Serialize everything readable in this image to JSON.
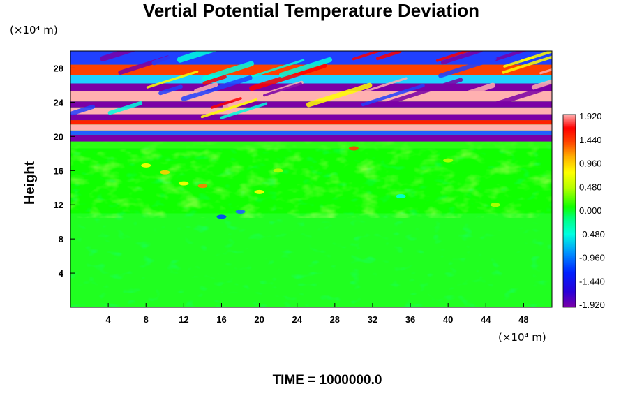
{
  "chart_data": {
    "type": "heatmap",
    "title": "Vertial Potential Temperature Deviation",
    "xlabel": "",
    "ylabel": "Height",
    "x_unit_label": "(×10⁴ m)",
    "y_unit_label": "(×10⁴ m)",
    "xlim": [
      0,
      51
    ],
    "ylim": [
      0,
      30
    ],
    "x_ticks": [
      "4",
      "8",
      "12",
      "16",
      "20",
      "24",
      "28",
      "32",
      "36",
      "40",
      "44",
      "48"
    ],
    "x_tick_values": [
      4,
      8,
      12,
      16,
      20,
      24,
      28,
      32,
      36,
      40,
      44,
      48
    ],
    "y_ticks": [
      "4",
      "8",
      "12",
      "16",
      "20",
      "24",
      "28"
    ],
    "y_tick_values": [
      4,
      8,
      12,
      16,
      20,
      24,
      28
    ],
    "colorbar": {
      "min": -1.92,
      "max": 1.92,
      "labels": [
        "1.920",
        "1.440",
        "0.960",
        "0.480",
        "0.000",
        "-0.480",
        "-0.960",
        "-1.440",
        "-1.920"
      ],
      "label_values": [
        1.92,
        1.44,
        0.96,
        0.48,
        0.0,
        -0.48,
        -0.96,
        -1.44,
        -1.92
      ]
    },
    "description_fields": {
      "low_levels_0_to_11": "near-zero deviation (green)",
      "mid_levels_11_to_19": "weak turbulent deviations",
      "upper_levels_19_to_30": "strong alternating positive/negative bands"
    },
    "annotation": "TIME = 1000000.0",
    "grid": false,
    "legend": "colorbar-right"
  }
}
